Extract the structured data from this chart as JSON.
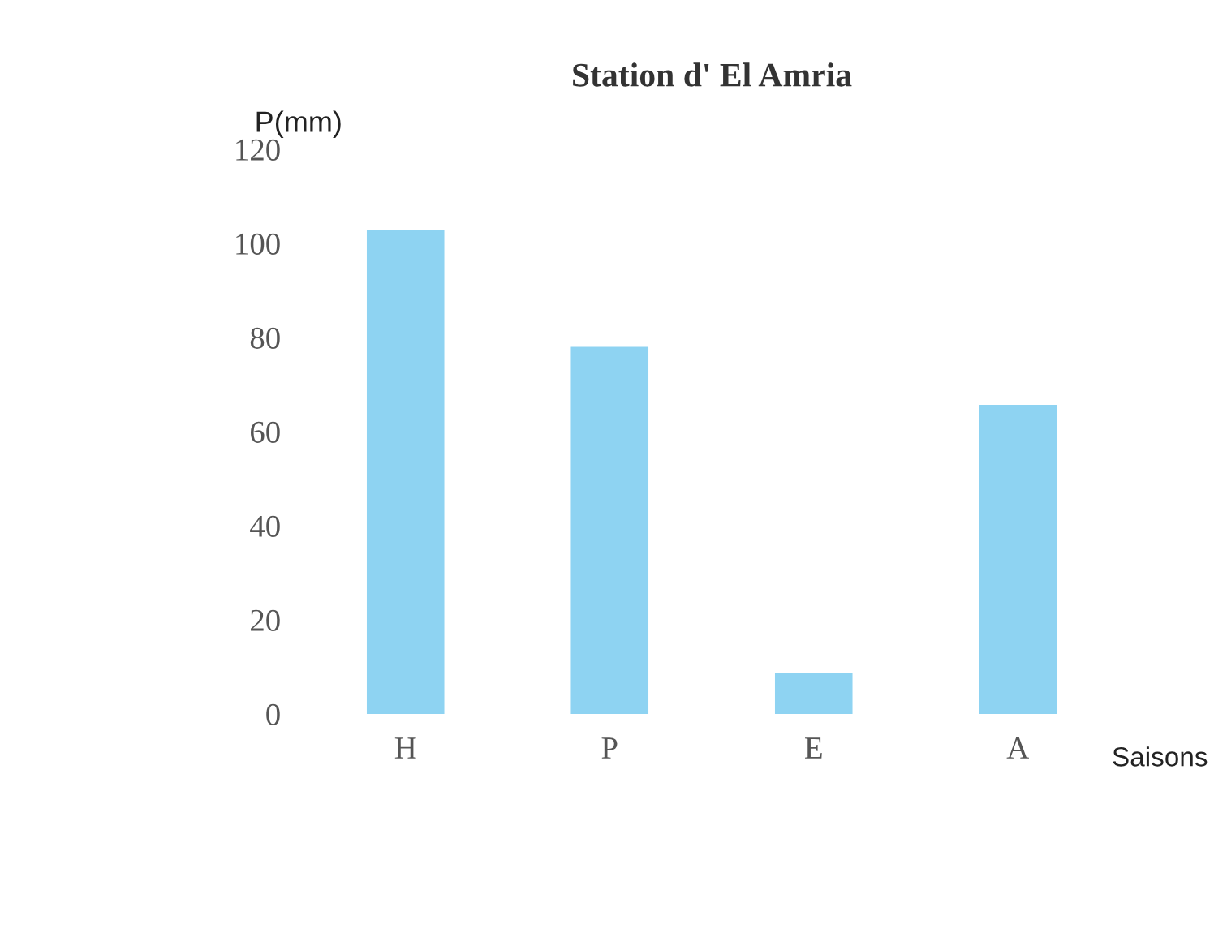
{
  "chart_data": {
    "type": "bar",
    "title": "Station d' El Amria",
    "xlabel": "Saisons",
    "ylabel": "P(mm)",
    "categories": [
      "H",
      "P",
      "E",
      "A"
    ],
    "values": [
      102.8,
      78,
      8.7,
      65.7
    ],
    "color": "#8ed3f2",
    "ylim": [
      0,
      120
    ],
    "yticks": [
      0,
      20,
      40,
      60,
      80,
      100,
      120
    ],
    "grid": false
  }
}
